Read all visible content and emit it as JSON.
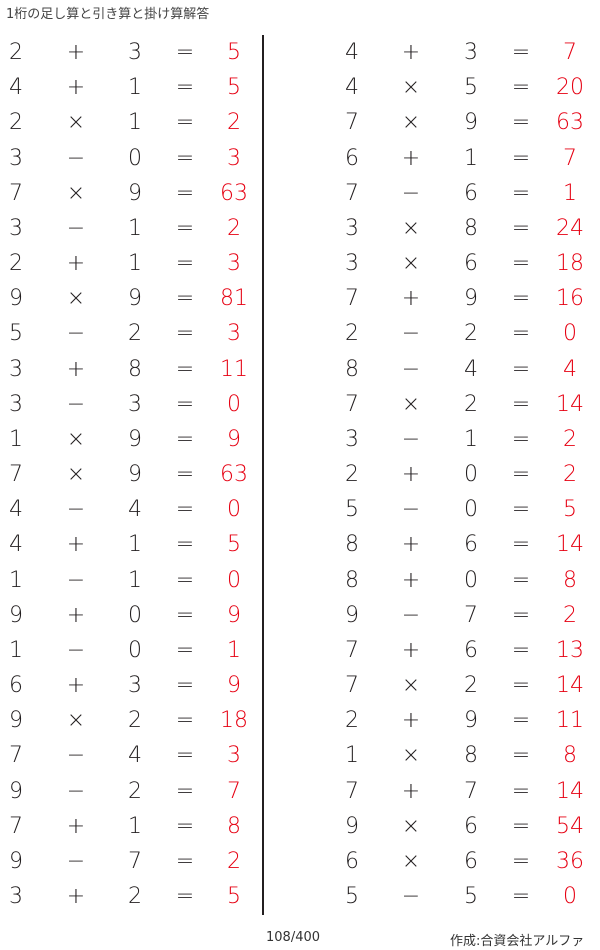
{
  "title": "1桁の足し算と引き算と掛け算解答",
  "page_number": "108/400",
  "credit": "作成:合資会社アルファ",
  "answer_color": "#e60012",
  "left": [
    [
      "2",
      "+",
      "3",
      "=",
      "5"
    ],
    [
      "4",
      "+",
      "1",
      "=",
      "5"
    ],
    [
      "2",
      "×",
      "1",
      "=",
      "2"
    ],
    [
      "3",
      "−",
      "0",
      "=",
      "3"
    ],
    [
      "7",
      "×",
      "9",
      "=",
      "63"
    ],
    [
      "3",
      "−",
      "1",
      "=",
      "2"
    ],
    [
      "2",
      "+",
      "1",
      "=",
      "3"
    ],
    [
      "9",
      "×",
      "9",
      "=",
      "81"
    ],
    [
      "5",
      "−",
      "2",
      "=",
      "3"
    ],
    [
      "3",
      "+",
      "8",
      "=",
      "11"
    ],
    [
      "3",
      "−",
      "3",
      "=",
      "0"
    ],
    [
      "1",
      "×",
      "9",
      "=",
      "9"
    ],
    [
      "7",
      "×",
      "9",
      "=",
      "63"
    ],
    [
      "4",
      "−",
      "4",
      "=",
      "0"
    ],
    [
      "4",
      "+",
      "1",
      "=",
      "5"
    ],
    [
      "1",
      "−",
      "1",
      "=",
      "0"
    ],
    [
      "9",
      "+",
      "0",
      "=",
      "9"
    ],
    [
      "1",
      "−",
      "0",
      "=",
      "1"
    ],
    [
      "6",
      "+",
      "3",
      "=",
      "9"
    ],
    [
      "9",
      "×",
      "2",
      "=",
      "18"
    ],
    [
      "7",
      "−",
      "4",
      "=",
      "3"
    ],
    [
      "9",
      "−",
      "2",
      "=",
      "7"
    ],
    [
      "7",
      "+",
      "1",
      "=",
      "8"
    ],
    [
      "9",
      "−",
      "7",
      "=",
      "2"
    ],
    [
      "3",
      "+",
      "2",
      "=",
      "5"
    ]
  ],
  "right": [
    [
      "4",
      "+",
      "3",
      "=",
      "7"
    ],
    [
      "4",
      "×",
      "5",
      "=",
      "20"
    ],
    [
      "7",
      "×",
      "9",
      "=",
      "63"
    ],
    [
      "6",
      "+",
      "1",
      "=",
      "7"
    ],
    [
      "7",
      "−",
      "6",
      "=",
      "1"
    ],
    [
      "3",
      "×",
      "8",
      "=",
      "24"
    ],
    [
      "3",
      "×",
      "6",
      "=",
      "18"
    ],
    [
      "7",
      "+",
      "9",
      "=",
      "16"
    ],
    [
      "2",
      "−",
      "2",
      "=",
      "0"
    ],
    [
      "8",
      "−",
      "4",
      "=",
      "4"
    ],
    [
      "7",
      "×",
      "2",
      "=",
      "14"
    ],
    [
      "3",
      "−",
      "1",
      "=",
      "2"
    ],
    [
      "2",
      "+",
      "0",
      "=",
      "2"
    ],
    [
      "5",
      "−",
      "0",
      "=",
      "5"
    ],
    [
      "8",
      "+",
      "6",
      "=",
      "14"
    ],
    [
      "8",
      "+",
      "0",
      "=",
      "8"
    ],
    [
      "9",
      "−",
      "7",
      "=",
      "2"
    ],
    [
      "7",
      "+",
      "6",
      "=",
      "13"
    ],
    [
      "7",
      "×",
      "2",
      "=",
      "14"
    ],
    [
      "2",
      "+",
      "9",
      "=",
      "11"
    ],
    [
      "1",
      "×",
      "8",
      "=",
      "8"
    ],
    [
      "7",
      "+",
      "7",
      "=",
      "14"
    ],
    [
      "9",
      "×",
      "6",
      "=",
      "54"
    ],
    [
      "6",
      "×",
      "6",
      "=",
      "36"
    ],
    [
      "5",
      "−",
      "5",
      "=",
      "0"
    ]
  ]
}
